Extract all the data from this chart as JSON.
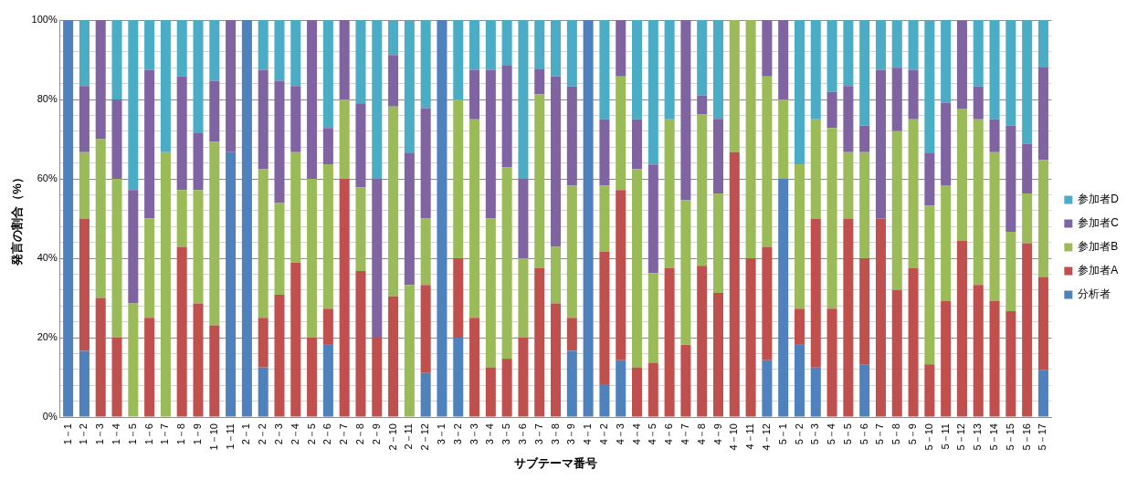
{
  "chart_data": {
    "type": "bar",
    "stacked": true,
    "xlabel": "サブテーマ番号",
    "ylabel": "発言の割合（%）",
    "legend": "right",
    "grid": "y",
    "categories": [
      "1－1",
      "1－2",
      "1－3",
      "1－4",
      "1－5",
      "1－6",
      "1－7",
      "1－8",
      "1－9",
      "1－10",
      "1－11",
      "2－1",
      "2－2",
      "2－3",
      "2－4",
      "2－5",
      "2－6",
      "2－7",
      "2－8",
      "2－9",
      "2－10",
      "2－11",
      "2－12",
      "3－1",
      "3－2",
      "3－3",
      "3－4",
      "3－5",
      "3－6",
      "3－7",
      "3－8",
      "3－9",
      "4－1",
      "4－2",
      "4－3",
      "4－4",
      "4－5",
      "4－6",
      "4－7",
      "4－8",
      "4－9",
      "4－10",
      "4－11",
      "4－12",
      "5－1",
      "5－2",
      "5－3",
      "5－4",
      "5－5",
      "5－6",
      "5－7",
      "5－8",
      "5－9",
      "5－10",
      "5－11",
      "5－12",
      "5－13",
      "5－14",
      "5－15",
      "5－16",
      "5－17"
    ],
    "ylim": [
      0,
      100
    ],
    "yticks": [
      {
        "value": 0,
        "label": "0%"
      },
      {
        "value": 4,
        "label": null
      },
      {
        "value": 8,
        "label": null
      },
      {
        "value": 12,
        "label": null
      },
      {
        "value": 16,
        "label": null
      },
      {
        "value": 20,
        "label": "20%"
      },
      {
        "value": 24,
        "label": null
      },
      {
        "value": 28,
        "label": null
      },
      {
        "value": 32,
        "label": null
      },
      {
        "value": 36,
        "label": null
      },
      {
        "value": 40,
        "label": "40%"
      },
      {
        "value": 44,
        "label": null
      },
      {
        "value": 48,
        "label": null
      },
      {
        "value": 52,
        "label": null
      },
      {
        "value": 56,
        "label": null
      },
      {
        "value": 60,
        "label": "60%"
      },
      {
        "value": 64,
        "label": null
      },
      {
        "value": 68,
        "label": null
      },
      {
        "value": 72,
        "label": null
      },
      {
        "value": 76,
        "label": null
      },
      {
        "value": 80,
        "label": "80%"
      },
      {
        "value": 84,
        "label": null
      },
      {
        "value": 88,
        "label": null
      },
      {
        "value": 92,
        "label": null
      },
      {
        "value": 96,
        "label": null
      },
      {
        "value": 100,
        "label": "100%"
      }
    ],
    "series": [
      {
        "name": "分析者",
        "color": "#4f81bd",
        "values": [
          100,
          16.7,
          0,
          0,
          0,
          0,
          0,
          0,
          0,
          0,
          66.7,
          100,
          12.5,
          0,
          0,
          0,
          18.2,
          0,
          0,
          0,
          0,
          0,
          11.1,
          100,
          20,
          0,
          0,
          0,
          0,
          0,
          0,
          16.7,
          100,
          8.3,
          14.3,
          0,
          0,
          0,
          0,
          0,
          0,
          0,
          0,
          14.3,
          60,
          18.2,
          12.5,
          0,
          0,
          13.3,
          0,
          0,
          0,
          0,
          0,
          0,
          0,
          0,
          0,
          0,
          11.8
        ]
      },
      {
        "name": "参加者A",
        "color": "#c0504d",
        "values": [
          0,
          33.3,
          30,
          20,
          0,
          25,
          0,
          42.9,
          28.6,
          23.1,
          0,
          0,
          12.5,
          30.8,
          38.9,
          20,
          9.1,
          60,
          36.8,
          20,
          30.4,
          0,
          22.2,
          0,
          20,
          25,
          12.5,
          14.7,
          20,
          37.5,
          28.6,
          8.3,
          0,
          33.3,
          42.9,
          12.5,
          13.6,
          37.5,
          18.2,
          38.1,
          31.3,
          66.7,
          40,
          28.6,
          0,
          9.1,
          37.5,
          27.3,
          50,
          26.7,
          50,
          32,
          37.5,
          13.3,
          29.2,
          44.4,
          33.3,
          29.2,
          26.7,
          43.8,
          23.5
        ]
      },
      {
        "name": "参加者B",
        "color": "#9bbb59",
        "values": [
          0,
          16.7,
          40,
          40,
          28.6,
          25,
          66.7,
          14.3,
          28.6,
          46.2,
          0,
          0,
          37.5,
          23.1,
          27.8,
          40,
          36.4,
          20,
          21.1,
          0,
          47.8,
          33.3,
          16.7,
          0,
          40,
          50,
          37.5,
          48.2,
          20,
          43.8,
          14.3,
          33.3,
          0,
          16.7,
          28.6,
          50,
          22.7,
          37.5,
          36.4,
          38.1,
          25,
          33.3,
          60,
          42.9,
          20,
          36.4,
          25,
          45.5,
          16.7,
          26.7,
          0,
          40,
          37.5,
          40,
          29.2,
          33.3,
          41.7,
          37.5,
          20,
          12.5,
          29.4
        ]
      },
      {
        "name": "参加者C",
        "color": "#8064a2",
        "values": [
          0,
          16.7,
          30,
          20,
          28.6,
          37.5,
          0,
          28.6,
          14.3,
          15.4,
          33.3,
          0,
          25,
          30.8,
          16.7,
          40,
          9.1,
          20,
          21.1,
          40,
          13,
          33.3,
          27.8,
          0,
          0,
          12.5,
          37.5,
          25.8,
          20,
          6.3,
          42.9,
          25,
          0,
          16.7,
          14.3,
          12.5,
          27.3,
          0,
          45.5,
          4.8,
          18.8,
          0,
          0,
          14.3,
          20,
          0,
          0,
          9.1,
          16.7,
          6.7,
          37.5,
          16,
          12.5,
          13.3,
          20.8,
          22.2,
          8.3,
          8.3,
          26.7,
          12.5,
          23.5
        ]
      },
      {
        "name": "参加者D",
        "color": "#4bacc6",
        "values": [
          0,
          16.7,
          0,
          20,
          42.9,
          12.5,
          33.3,
          14.3,
          28.6,
          15.4,
          0,
          0,
          12.5,
          15.4,
          16.7,
          0,
          27.3,
          0,
          21.1,
          40,
          8.7,
          33.3,
          22.2,
          0,
          20,
          12.5,
          12.5,
          11.3,
          40,
          12.5,
          14.3,
          16.7,
          0,
          25,
          0,
          25,
          36.4,
          25,
          0,
          19,
          25,
          0,
          0,
          0,
          0,
          36.4,
          25,
          18.2,
          16.7,
          26.7,
          12.5,
          12,
          12.5,
          33.3,
          20.8,
          0,
          16.7,
          25,
          26.7,
          31.3,
          11.8
        ]
      }
    ]
  }
}
